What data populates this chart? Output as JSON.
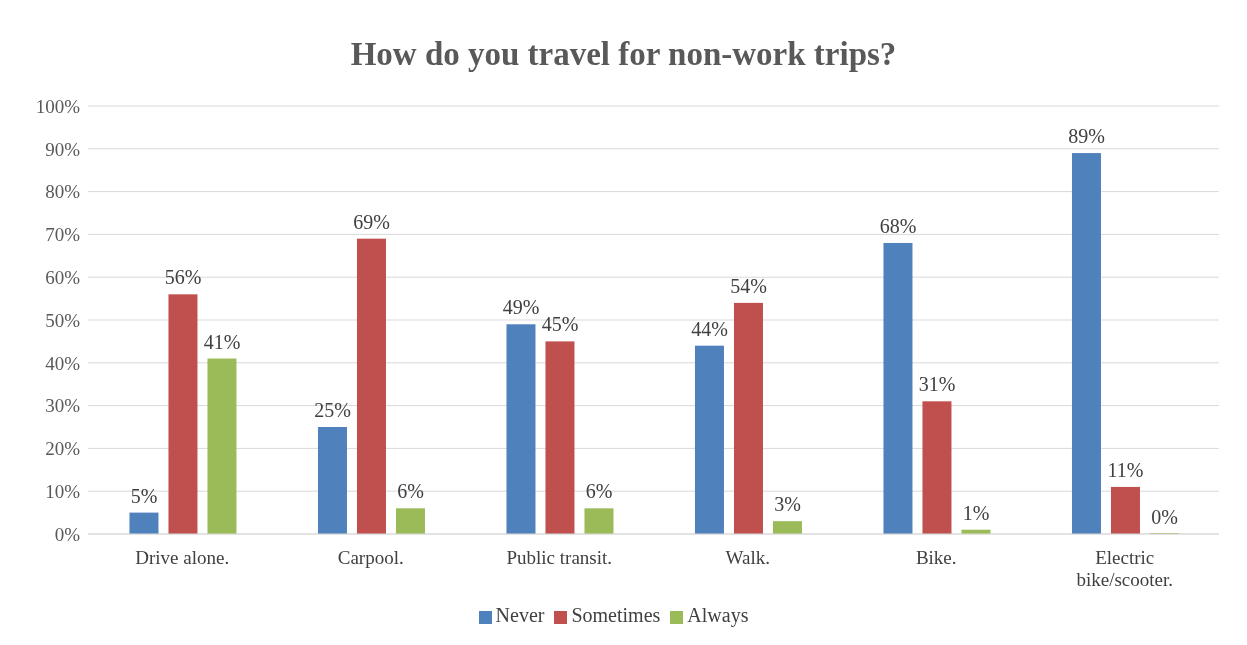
{
  "chart_data": {
    "type": "bar",
    "title": "How do you travel for non-work trips?",
    "categories": [
      "Drive alone.",
      "Carpool.",
      "Public transit.",
      "Walk.",
      "Bike.",
      "Electric bike/scooter."
    ],
    "series": [
      {
        "name": "Never",
        "color": "#4f81bd",
        "values": [
          5,
          25,
          49,
          44,
          68,
          89
        ],
        "value_labels": [
          "5%",
          "25%",
          "49%",
          "44%",
          "68%",
          "89%"
        ]
      },
      {
        "name": "Sometimes",
        "color": "#c0504d",
        "values": [
          56,
          69,
          45,
          54,
          31,
          11
        ],
        "value_labels": [
          "56%",
          "69%",
          "45%",
          "54%",
          "31%",
          "11%"
        ]
      },
      {
        "name": "Always",
        "color": "#9bbb59",
        "values": [
          41,
          6,
          6,
          3,
          1,
          0
        ],
        "value_labels": [
          "41%",
          "6%",
          "6%",
          "3%",
          "1%",
          "0%"
        ]
      }
    ],
    "ylim": [
      0,
      100
    ],
    "yticks": [
      {
        "value": 0,
        "label": "0%"
      },
      {
        "value": 10,
        "label": "10%"
      },
      {
        "value": 20,
        "label": "20%"
      },
      {
        "value": 30,
        "label": "30%"
      },
      {
        "value": 40,
        "label": "40%"
      },
      {
        "value": 50,
        "label": "50%"
      },
      {
        "value": 60,
        "label": "60%"
      },
      {
        "value": 70,
        "label": "70%"
      },
      {
        "value": 80,
        "label": "80%"
      },
      {
        "value": 90,
        "label": "90%"
      },
      {
        "value": 100,
        "label": "100%"
      }
    ],
    "grid": "y",
    "legend": "bottom"
  }
}
